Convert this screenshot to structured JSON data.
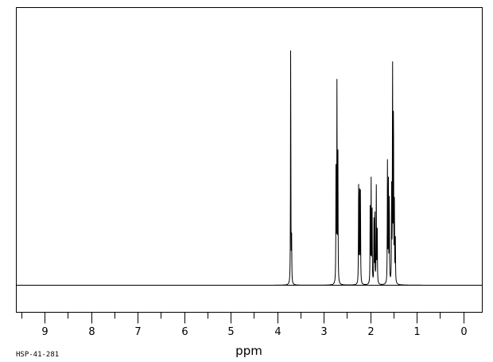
{
  "chart_data": {
    "type": "line",
    "title": "",
    "xlabel": "ppm",
    "ylabel": "",
    "spectrum_code": "HSP-41-281",
    "x_axis": {
      "reversed": true,
      "range": [
        9.6,
        -0.4
      ],
      "major_ticks": [
        9,
        8,
        7,
        6,
        5,
        4,
        3,
        2,
        1,
        0
      ],
      "tick_labels": [
        "9",
        "8",
        "7",
        "6",
        "5",
        "4",
        "3",
        "2",
        "1",
        "0"
      ],
      "minor_step": 0.5
    },
    "y_range": [
      -0.1,
      1.0
    ],
    "grid": false,
    "line_color": "#000000",
    "peaks": [
      {
        "ppm": 3.71,
        "height": 0.985
      },
      {
        "ppm": 3.69,
        "height": 0.17
      },
      {
        "ppm": 2.735,
        "height": 0.53
      },
      {
        "ppm": 2.715,
        "height": 0.775
      },
      {
        "ppm": 2.695,
        "height": 0.53
      },
      {
        "ppm": 2.25,
        "height": 0.38
      },
      {
        "ppm": 2.23,
        "height": 0.42
      },
      {
        "ppm": 2.21,
        "height": 0.38
      },
      {
        "ppm": 2.0,
        "height": 0.35
      },
      {
        "ppm": 1.98,
        "height": 0.4
      },
      {
        "ppm": 1.96,
        "height": 0.3
      },
      {
        "ppm": 1.92,
        "height": 0.25
      },
      {
        "ppm": 1.9,
        "height": 0.28
      },
      {
        "ppm": 1.87,
        "height": 0.39
      },
      {
        "ppm": 1.85,
        "height": 0.26
      },
      {
        "ppm": 1.63,
        "height": 0.47
      },
      {
        "ppm": 1.61,
        "height": 0.44
      },
      {
        "ppm": 1.59,
        "height": 0.36
      },
      {
        "ppm": 1.54,
        "height": 0.36
      },
      {
        "ppm": 1.52,
        "height": 0.9
      },
      {
        "ppm": 1.5,
        "height": 0.74
      },
      {
        "ppm": 1.48,
        "height": 0.3
      },
      {
        "ppm": 1.46,
        "height": 0.18
      }
    ]
  }
}
